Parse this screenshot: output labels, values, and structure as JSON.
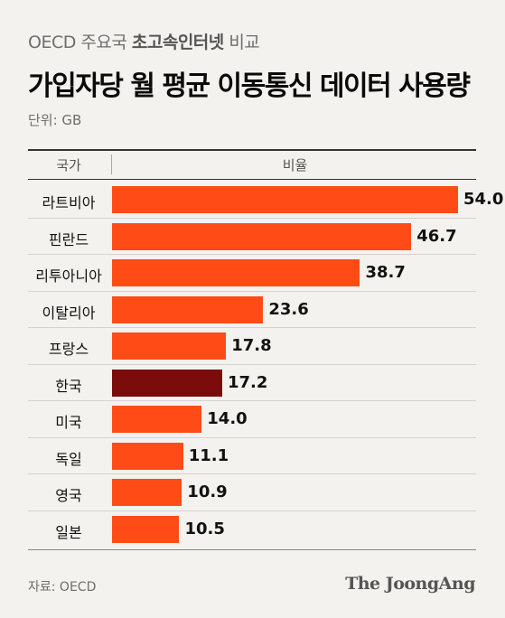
{
  "header": {
    "subtitle_prefix": "OECD 주요국",
    "subtitle_bold": "초고속인터넷",
    "subtitle_suffix": "비교",
    "title": "가입자당 월 평균 이동통신 데이터 사용량",
    "unit": "단위: GB"
  },
  "table_header": {
    "country": "국가",
    "value": "비율"
  },
  "chart_data": {
    "type": "bar",
    "orientation": "horizontal",
    "title": "가입자당 월 평균 이동통신 데이터 사용량",
    "subtitle": "OECD 주요국 초고속인터넷 비교",
    "unit": "GB",
    "xlim": [
      0,
      54.0
    ],
    "categories": [
      "라트비아",
      "핀란드",
      "리투아니아",
      "이탈리아",
      "프랑스",
      "한국",
      "미국",
      "독일",
      "영국",
      "일본"
    ],
    "values": [
      54.0,
      46.7,
      38.7,
      23.6,
      17.8,
      17.2,
      14.0,
      11.1,
      10.9,
      10.5
    ],
    "value_labels": [
      "54.0",
      "46.7",
      "38.7",
      "23.6",
      "17.8",
      "17.2",
      "14.0",
      "11.1",
      "10.9",
      "10.5"
    ],
    "highlight_category": "한국",
    "colors": {
      "bar": "#ff4c16",
      "highlight": "#7c0b0b"
    }
  },
  "footer": {
    "source": "자료: OECD",
    "brand": "The JoongAng"
  }
}
